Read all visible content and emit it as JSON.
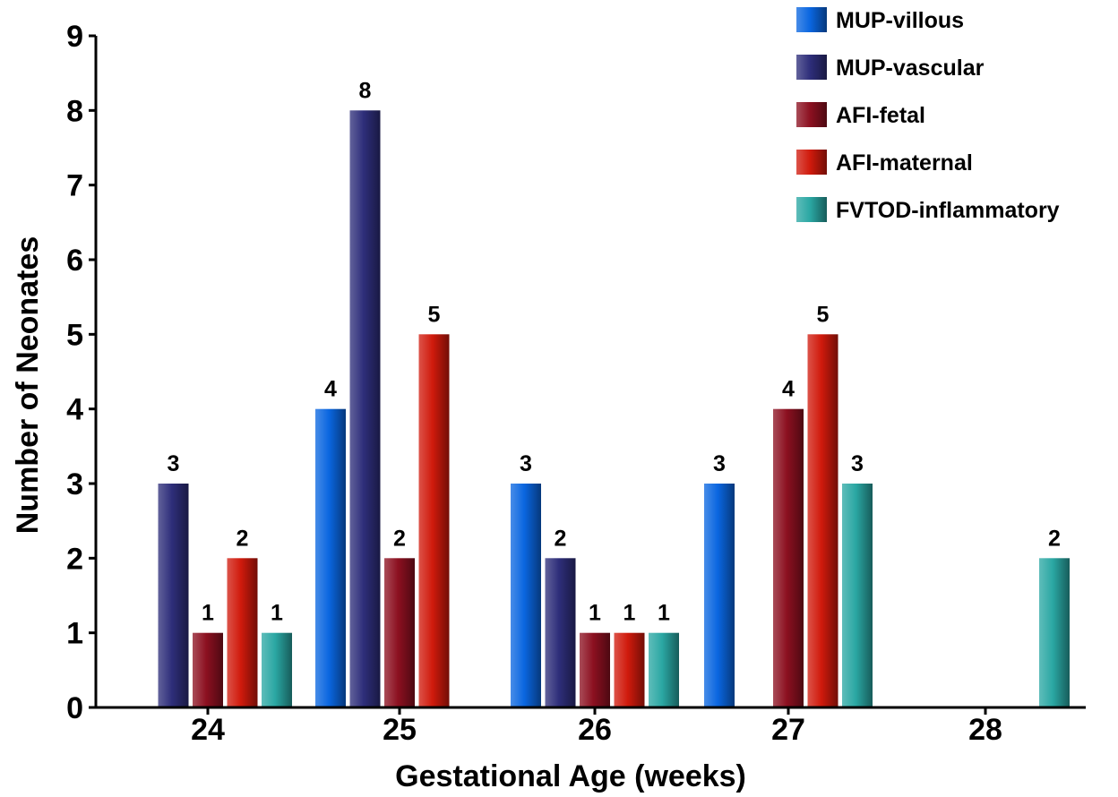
{
  "chart_data": {
    "type": "bar",
    "title": "",
    "xlabel": "Gestational Age (weeks)",
    "ylabel": "Number of Neonates",
    "categories": [
      "24",
      "25",
      "26",
      "27",
      "28"
    ],
    "yticks": [
      "0",
      "1",
      "2",
      "3",
      "4",
      "5",
      "6",
      "7",
      "8",
      "9"
    ],
    "ylim": [
      0,
      9
    ],
    "grid": false,
    "legend_position": "top-right",
    "series": [
      {
        "name": "MUP-villous",
        "color": "#0a66e0",
        "values": [
          null,
          4,
          3,
          3,
          null
        ]
      },
      {
        "name": "MUP-vascular",
        "color": "#2e2e7a",
        "values": [
          3,
          8,
          2,
          null,
          null
        ]
      },
      {
        "name": "AFI-fetal",
        "color": "#8c1020",
        "values": [
          1,
          2,
          1,
          4,
          null
        ]
      },
      {
        "name": "AFI-maternal",
        "color": "#d01a0c",
        "values": [
          2,
          5,
          1,
          5,
          null
        ]
      },
      {
        "name": "FVTOD-inflammatory",
        "color": "#2aa7a3",
        "values": [
          1,
          null,
          1,
          3,
          2
        ]
      }
    ]
  }
}
